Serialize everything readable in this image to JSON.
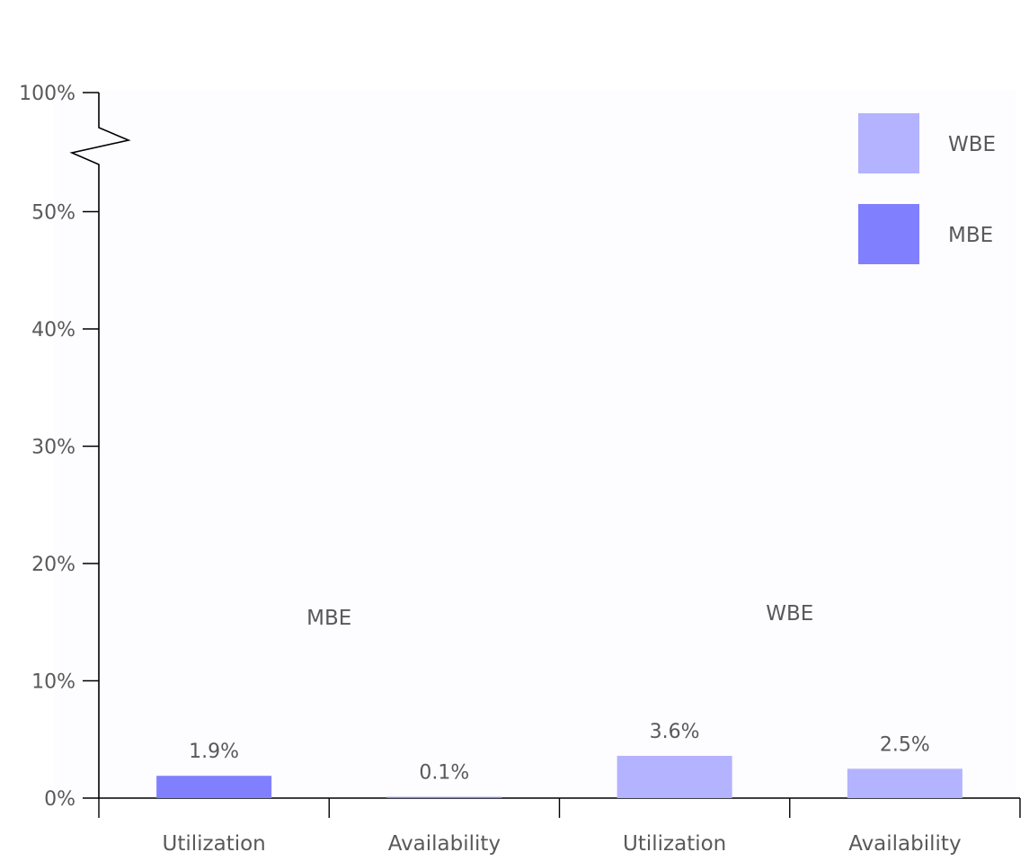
{
  "chart_data": {
    "type": "bar",
    "title": "",
    "xlabel": "",
    "ylabel": "",
    "ylim": [
      0,
      100
    ],
    "axis_break": {
      "between": [
        "50%",
        "100%"
      ]
    },
    "y_ticks": [
      "0%",
      "10%",
      "20%",
      "30%",
      "40%",
      "50%",
      "100%"
    ],
    "groups": [
      {
        "label": "MBE",
        "color": "#8080ff",
        "bars": [
          {
            "category": "Utilization",
            "value": 1.9,
            "label": "1.9%"
          },
          {
            "category": "Availability",
            "value": 0.1,
            "label": "0.1%"
          }
        ]
      },
      {
        "label": "WBE",
        "color": "#b3b3ff",
        "bars": [
          {
            "category": "Utilization",
            "value": 3.6,
            "label": "3.6%"
          },
          {
            "category": "Availability",
            "value": 2.5,
            "label": "2.5%"
          }
        ]
      }
    ],
    "legend": {
      "placement": "top-right",
      "items": [
        {
          "name": "WBE",
          "color": "#b3b3ff"
        },
        {
          "name": "MBE",
          "color": "#8080ff"
        }
      ]
    },
    "grid": false
  }
}
